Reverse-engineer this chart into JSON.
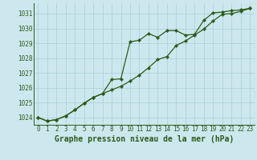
{
  "title": "Graphe pression niveau de la mer (hPa)",
  "bg_color": "#cce8ee",
  "grid_color": "#a8cdd5",
  "line_color": "#2d5a1b",
  "marker_color": "#2d5a1b",
  "xlim": [
    -0.5,
    23.5
  ],
  "ylim": [
    1023.5,
    1031.7
  ],
  "yticks": [
    1024,
    1025,
    1026,
    1027,
    1028,
    1029,
    1030,
    1031
  ],
  "xticks": [
    0,
    1,
    2,
    3,
    4,
    5,
    6,
    7,
    8,
    9,
    10,
    11,
    12,
    13,
    14,
    15,
    16,
    17,
    18,
    19,
    20,
    21,
    22,
    23
  ],
  "series1_x": [
    0,
    1,
    2,
    3,
    4,
    5,
    6,
    7,
    8,
    9,
    10,
    11,
    12,
    13,
    14,
    15,
    16,
    17,
    18,
    19,
    20,
    21,
    22,
    23
  ],
  "series1_y": [
    1024.0,
    1023.75,
    1023.85,
    1024.1,
    1024.5,
    1024.95,
    1025.35,
    1025.6,
    1026.55,
    1026.6,
    1029.1,
    1029.2,
    1029.65,
    1029.4,
    1029.85,
    1029.85,
    1029.55,
    1029.6,
    1030.55,
    1031.05,
    1031.1,
    1031.2,
    1031.25,
    1031.35
  ],
  "series2_x": [
    0,
    1,
    2,
    3,
    4,
    5,
    6,
    7,
    8,
    9,
    10,
    11,
    12,
    13,
    14,
    15,
    16,
    17,
    18,
    19,
    20,
    21,
    22,
    23
  ],
  "series2_y": [
    1024.0,
    1023.75,
    1023.85,
    1024.1,
    1024.5,
    1024.95,
    1025.35,
    1025.6,
    1025.85,
    1026.1,
    1026.45,
    1026.85,
    1027.35,
    1027.9,
    1028.1,
    1028.85,
    1029.15,
    1029.55,
    1029.95,
    1030.5,
    1030.95,
    1031.0,
    1031.15,
    1031.35
  ],
  "tick_fontsize": 5.5,
  "title_fontsize": 7.0
}
